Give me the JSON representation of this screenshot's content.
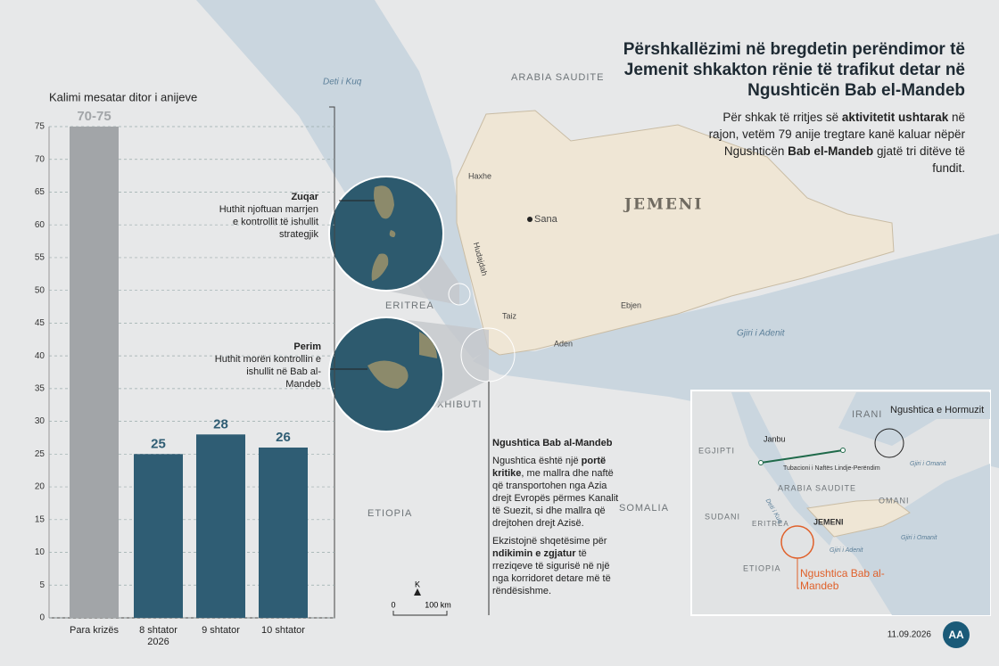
{
  "chart_data": {
    "type": "bar",
    "title": "Kalimi mesatar ditor i anijeve",
    "categories": [
      "Para krizës",
      "8 shtator 2026",
      "9 shtator",
      "10 shtator"
    ],
    "values": [
      75,
      25,
      28,
      26
    ],
    "value_labels": [
      "70-75",
      "25",
      "28",
      "26"
    ],
    "colors": [
      "#a2a5a8",
      "#2f5d74",
      "#2f5d74",
      "#2f5d74"
    ],
    "ylim": [
      0,
      75
    ],
    "yticks": [
      0,
      5,
      10,
      15,
      20,
      25,
      30,
      35,
      40,
      45,
      50,
      55,
      60,
      65,
      70,
      75
    ],
    "grid": true
  },
  "title": "Përshkallëzimi në bregdetin perëndimor të Jemenit shkakton rënie të trafikut detar në Ngushticën Bab el-Mandeb",
  "subtitle": [
    "Për shkak të rritjes së ",
    "aktivitetit ushtarak",
    " në rajon, vetëm 79 anije tregtare kanë kaluar nëpër Ngushticën ",
    "Bab el-Mandeb",
    " gjatë tri ditëve të fundit."
  ],
  "map_labels": [
    "Deti i Kuq",
    "ARABIA SAUDITE",
    "JEMENI",
    "Haxhe",
    "Sana",
    "Hudajdah",
    "Taiz",
    "Ebjen",
    "Aden",
    "Gjiri i Adenit",
    "ERITREA",
    "XHIBUTI",
    "ETIOPIA",
    "SOMALIA"
  ],
  "islands": [
    {
      "name": "Zuqar",
      "text": "Huthit njoftuan marrjen e kontrollit të ishullit strategjik"
    },
    {
      "name": "Perim",
      "text": "Huthit morën kontrollin e ishullit në Bab al-Mandeb"
    }
  ],
  "strait_box": {
    "heading": "Ngushtica Bab al-Mandeb",
    "p1": [
      "Ngushtica është një ",
      "portë kritike",
      ", me mallra dhe naftë që transportohen nga Azia drejt Evropës përmes Kanalit të Suezit, si dhe mallra që drejtohen drejt Azisë."
    ],
    "p2": [
      "Ekzistojnë shqetësime për ",
      "ndikimin e zgjatur",
      " të rreziqeve të sigurisë në një nga korridoret detare më të rëndësishme."
    ]
  },
  "scale": {
    "north": "K",
    "zero": "0",
    "length": "100 km"
  },
  "inset": [
    "IRANI",
    "Ngushtica e Hormuzit",
    "EGJIPTI",
    "Janbu",
    "Tubacioni i Naftës Lindje-Perëndim",
    "ARABIA SAUDITE",
    "OMANI",
    "Gjiri i Omanit",
    "SUDANI",
    "ERITREA",
    "JEMENI",
    "Deti i Kuq",
    "Gjiri i Adenit",
    "Gjiri i Omanit",
    "ETIOPIA",
    "Ngushtica Bab al-Mandeb"
  ],
  "date": "11.09.2026",
  "logo": "AA"
}
